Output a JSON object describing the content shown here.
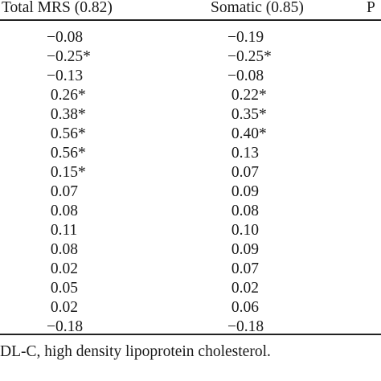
{
  "table": {
    "headers": {
      "total_mrs": "Total MRS (0.82)",
      "somatic": "Somatic (0.85)",
      "partial_col": "P"
    },
    "rows": [
      {
        "total": "−0.08",
        "somatic": "−0.19"
      },
      {
        "total": "−0.25*",
        "somatic": "−0.25*"
      },
      {
        "total": "−0.13",
        "somatic": "−0.08"
      },
      {
        "total": " 0.26*",
        "somatic": " 0.22*"
      },
      {
        "total": " 0.38*",
        "somatic": " 0.35*"
      },
      {
        "total": " 0.56*",
        "somatic": " 0.40*"
      },
      {
        "total": " 0.56*",
        "somatic": " 0.13"
      },
      {
        "total": " 0.15*",
        "somatic": " 0.07"
      },
      {
        "total": " 0.07",
        "somatic": " 0.09"
      },
      {
        "total": " 0.08",
        "somatic": " 0.08"
      },
      {
        "total": " 0.11",
        "somatic": " 0.10"
      },
      {
        "total": " 0.08",
        "somatic": " 0.09"
      },
      {
        "total": " 0.02",
        "somatic": " 0.07"
      },
      {
        "total": " 0.05",
        "somatic": " 0.02"
      },
      {
        "total": " 0.02",
        "somatic": " 0.06"
      },
      {
        "total": "−0.18",
        "somatic": "−0.18"
      }
    ]
  },
  "footnote": "DL-C, high density lipoprotein cholesterol."
}
